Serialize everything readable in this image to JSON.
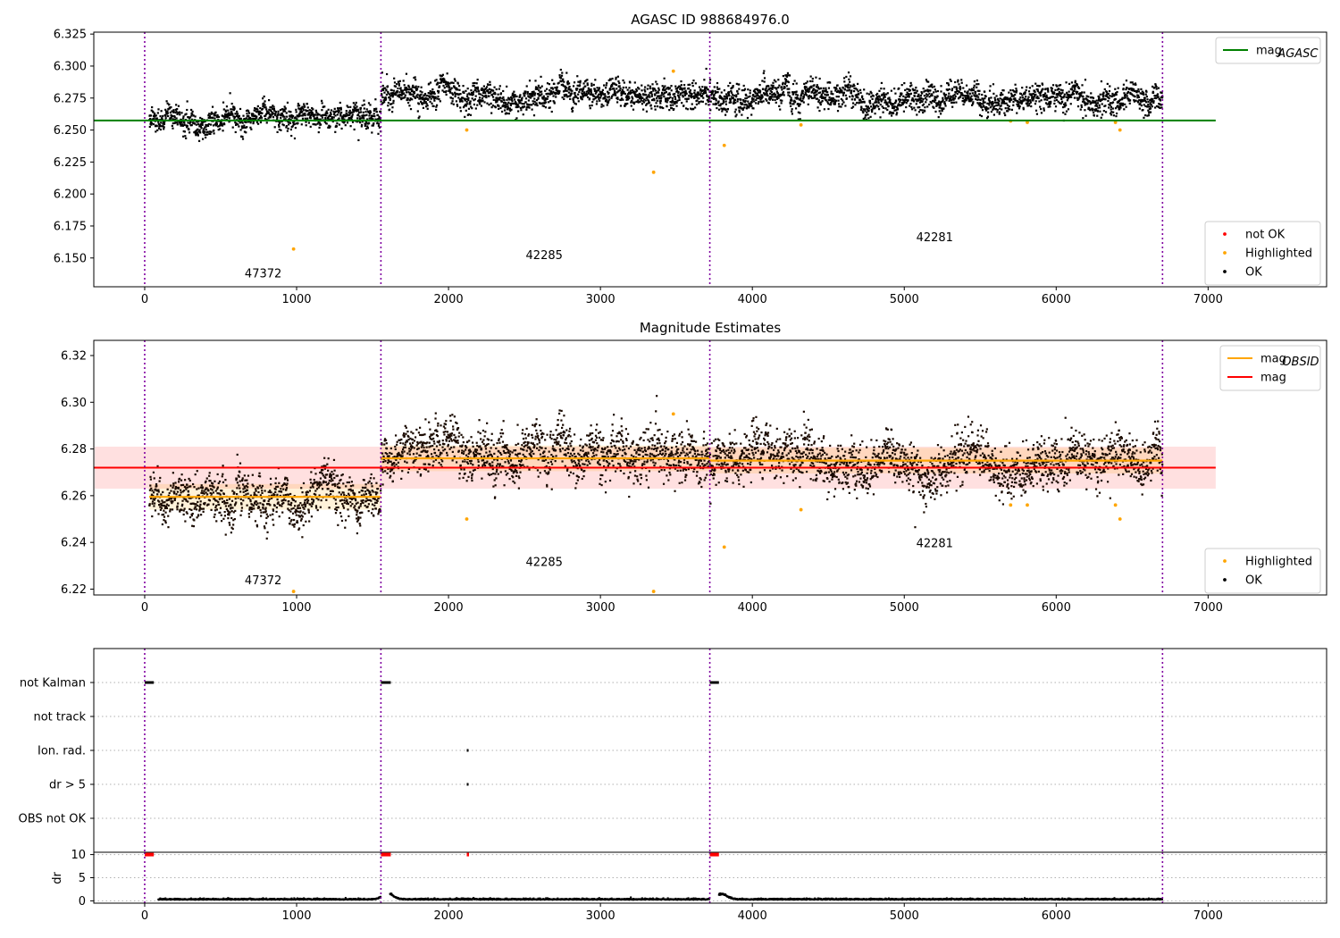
{
  "chart_data": [
    {
      "type": "scatter",
      "title": "AGASC ID 988684976.0",
      "xlim": [
        -335,
        7780
      ],
      "ylim": [
        6.1275,
        6.3265
      ],
      "xticks": [
        0,
        1000,
        2000,
        3000,
        4000,
        5000,
        6000,
        7000
      ],
      "yticks": [
        6.15,
        6.175,
        6.2,
        6.225,
        6.25,
        6.275,
        6.3,
        6.325
      ],
      "ytick_decimals": 3,
      "obsid_boundaries": [
        0,
        1555,
        3720,
        6700
      ],
      "segments": [
        {
          "obsid": "47372",
          "x_start": 30,
          "x_end": 1555,
          "mean": 6.259,
          "spread": 0.0045,
          "label_x": 780,
          "label_y": 6.135
        },
        {
          "obsid": "42285",
          "x_start": 1555,
          "x_end": 3720,
          "mean": 6.2775,
          "spread": 0.005,
          "label_x": 2630,
          "label_y": 6.149
        },
        {
          "obsid": "42281",
          "x_start": 3720,
          "x_end": 6700,
          "mean": 6.275,
          "spread": 0.005,
          "label_x": 5200,
          "label_y": 6.163
        }
      ],
      "highlighted_points": [
        [
          980,
          6.157
        ],
        [
          2120,
          6.25
        ],
        [
          3350,
          6.217
        ],
        [
          3480,
          6.296
        ],
        [
          3815,
          6.238
        ],
        [
          4320,
          6.254
        ],
        [
          5700,
          6.257
        ],
        [
          5810,
          6.256
        ],
        [
          6390,
          6.256
        ],
        [
          6420,
          6.25
        ]
      ],
      "lines": [
        {
          "name": "mag_AGASC",
          "color": "#008000",
          "y": 6.2575,
          "x_start": -335,
          "x_end": 7050
        }
      ],
      "legend_upper": [
        {
          "label": "mag",
          "sub": "AGASC",
          "color": "#008000",
          "style": "line"
        }
      ],
      "legend_lower": [
        {
          "label": "not OK",
          "color": "#ff0000",
          "style": "dot"
        },
        {
          "label": "Highlighted",
          "color": "#ffa500",
          "style": "dot"
        },
        {
          "label": "OK",
          "color": "#000000",
          "style": "dot"
        }
      ]
    },
    {
      "type": "scatter",
      "title": "Magnitude Estimates",
      "xlim": [
        -335,
        7780
      ],
      "ylim": [
        6.2175,
        6.3265
      ],
      "xticks": [
        0,
        1000,
        2000,
        3000,
        4000,
        5000,
        6000,
        7000
      ],
      "yticks": [
        6.22,
        6.24,
        6.26,
        6.28,
        6.3,
        6.32
      ],
      "ytick_decimals": 2,
      "obsid_boundaries": [
        0,
        1555,
        3720,
        6700
      ],
      "segments": [
        {
          "obsid": "47372",
          "x_start": 30,
          "x_end": 1555,
          "mean": 6.259,
          "spread": 0.0045,
          "label_x": 780,
          "label_y": 6.222,
          "mag_obsid": 6.2595
        },
        {
          "obsid": "42285",
          "x_start": 1555,
          "x_end": 3720,
          "mean": 6.2775,
          "spread": 0.005,
          "label_x": 2630,
          "label_y": 6.23,
          "mag_obsid": 6.276
        },
        {
          "obsid": "42281",
          "x_start": 3720,
          "x_end": 6700,
          "mean": 6.275,
          "spread": 0.005,
          "label_x": 5200,
          "label_y": 6.238,
          "mag_obsid": 6.275
        }
      ],
      "highlighted_points": [
        [
          980,
          6.219
        ],
        [
          2120,
          6.25
        ],
        [
          3350,
          6.219
        ],
        [
          3480,
          6.295
        ],
        [
          3815,
          6.238
        ],
        [
          4320,
          6.254
        ],
        [
          5700,
          6.256
        ],
        [
          5810,
          6.256
        ],
        [
          6390,
          6.256
        ],
        [
          6420,
          6.25
        ]
      ],
      "mag": 6.272,
      "mag_band": [
        6.263,
        6.281
      ],
      "mag_band_x": [
        -335,
        7050
      ],
      "obsid_band_half_width": 0.0055,
      "legend_upper": [
        {
          "label": "mag",
          "sub": "OBSID",
          "color": "#ffa500",
          "style": "line"
        },
        {
          "label": "mag",
          "sub": "",
          "color": "#ff0000",
          "style": "line"
        }
      ],
      "legend_lower": [
        {
          "label": "Highlighted",
          "color": "#ffa500",
          "style": "dot"
        },
        {
          "label": "OK",
          "color": "#000000",
          "style": "dot"
        }
      ]
    },
    {
      "type": "scatter",
      "xlim": [
        -335,
        7780
      ],
      "categories": [
        "not Kalman",
        "not track",
        "Ion. rad.",
        "dr > 5",
        "OBS not OK"
      ],
      "flag_points": {
        "not Kalman": [
          [
            0,
            60
          ],
          [
            1555,
            1620
          ],
          [
            3720,
            3780
          ]
        ],
        "not track": [],
        "Ion. rad.": [
          [
            2120,
            2125
          ]
        ],
        "dr > 5": [
          [
            2120,
            2125
          ]
        ],
        "OBS not OK": []
      },
      "obsid_boundaries": [
        0,
        1555,
        3720,
        6700
      ]
    },
    {
      "type": "scatter",
      "ylabel": "dr",
      "xlim": [
        -335,
        7780
      ],
      "ylim": [
        -0.5,
        10.5
      ],
      "yticks": [
        0,
        5,
        10
      ],
      "xticks": [
        0,
        1000,
        2000,
        3000,
        4000,
        5000,
        6000,
        7000
      ],
      "dr_segments": [
        [
          30,
          1555
        ],
        [
          1555,
          3720
        ],
        [
          3720,
          6700
        ]
      ],
      "dr_capped": [
        [
          0,
          60
        ],
        [
          1555,
          1620
        ],
        [
          2120,
          2125
        ],
        [
          3720,
          3780
        ]
      ],
      "dr_bumps": [
        [
          1600,
          1.3
        ],
        [
          3800,
          1.1
        ]
      ],
      "obsid_boundaries": [
        0,
        1555,
        3720,
        6700
      ]
    }
  ]
}
